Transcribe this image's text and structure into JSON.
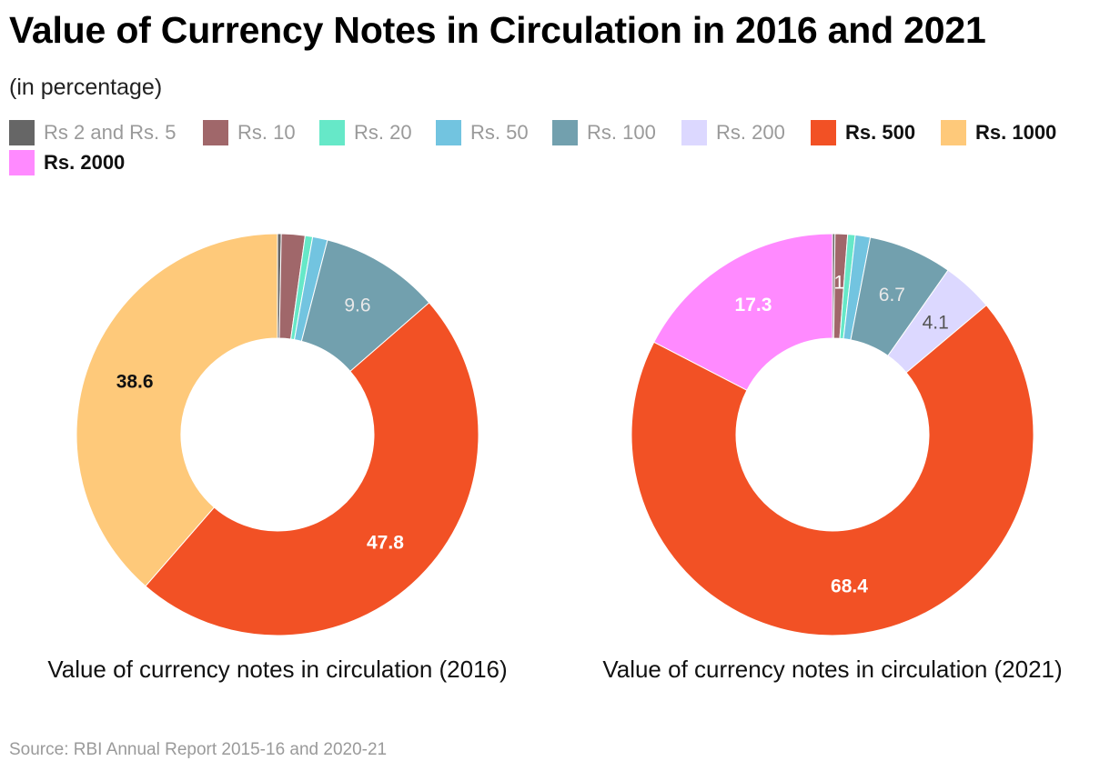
{
  "title": "Value of Currency Notes in Circulation in 2016 and 2021",
  "subtitle": "(in percentage)",
  "source": "Source: RBI Annual Report 2015-16 and 2020-21",
  "legend": [
    {
      "label": "Rs 2 and Rs. 5",
      "color": "#666666",
      "state": "muted"
    },
    {
      "label": "Rs. 10",
      "color": "#A0676A",
      "state": "muted"
    },
    {
      "label": "Rs. 20",
      "color": "#66E8C8",
      "state": "muted"
    },
    {
      "label": "Rs. 50",
      "color": "#72C4E0",
      "state": "muted"
    },
    {
      "label": "Rs. 100",
      "color": "#72A0AE",
      "state": "muted"
    },
    {
      "label": "Rs. 200",
      "color": "#DCD8FF",
      "state": "muted"
    },
    {
      "label": "Rs. 500",
      "color": "#F25125",
      "state": "active"
    },
    {
      "label": "Rs. 1000",
      "color": "#FEC97A",
      "state": "active"
    },
    {
      "label": "Rs. 2000",
      "color": "#FF8AFF",
      "state": "active"
    }
  ],
  "chart_data": [
    {
      "type": "pie",
      "variant": "donut",
      "title": "Value of currency notes in circulation (2016)",
      "categories": [
        "Rs 2 and Rs. 5",
        "Rs. 10",
        "Rs. 20",
        "Rs. 50",
        "Rs. 100",
        "Rs. 200",
        "Rs. 500",
        "Rs. 1000",
        "Rs. 2000"
      ],
      "values": [
        0.3,
        1.9,
        0.6,
        1.2,
        9.6,
        0,
        47.8,
        38.6,
        0
      ],
      "labels": [
        "",
        "",
        "",
        "",
        "9.6",
        "",
        "47.8",
        "38.6",
        ""
      ]
    },
    {
      "type": "pie",
      "variant": "donut",
      "title": "Value of currency notes in circulation (2021)",
      "categories": [
        "Rs 2 and Rs. 5",
        "Rs. 10",
        "Rs. 20",
        "Rs. 50",
        "Rs. 100",
        "Rs. 200",
        "Rs. 500",
        "Rs. 1000",
        "Rs. 2000"
      ],
      "values": [
        0.2,
        1.0,
        0.6,
        1.2,
        6.7,
        4.1,
        68.4,
        0,
        17.3
      ],
      "labels": [
        "",
        "1",
        "",
        "",
        "6.7",
        "4.1",
        "68.4",
        "",
        "17.3"
      ]
    }
  ]
}
